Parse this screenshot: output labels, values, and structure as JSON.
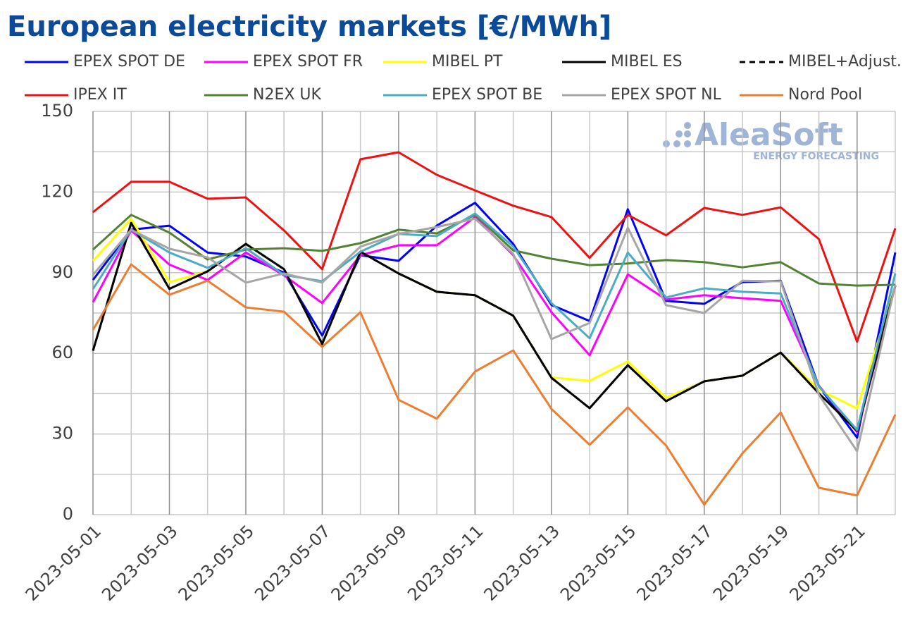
{
  "chart_data": {
    "type": "line",
    "title": "European electricity markets [€/MWh]",
    "watermark": {
      "name": "AleaSoft",
      "tagline": "ENERGY FORECASTING"
    },
    "categories": [
      "2023-05-01",
      null,
      "2023-05-03",
      null,
      "2023-05-05",
      null,
      "2023-05-07",
      null,
      "2023-05-09",
      null,
      "2023-05-11",
      null,
      "2023-05-13",
      null,
      "2023-05-15",
      null,
      "2023-05-17",
      null,
      "2023-05-19",
      null,
      "2023-05-21",
      null
    ],
    "ylim": [
      0,
      150
    ],
    "yticks": [
      0,
      30,
      60,
      90,
      120,
      150
    ],
    "minor_yticks": [
      15,
      45,
      75,
      105,
      135
    ],
    "grid": true,
    "series": [
      {
        "name": "EPEX SPOT DE",
        "color": "#0000ff",
        "values": [
          87.3,
          106,
          107.5,
          97.5,
          96,
          90,
          66.6,
          96.5,
          94.4,
          107.5,
          116,
          100.7,
          78,
          72,
          113.6,
          79.5,
          78.4,
          86.5,
          87,
          47.7,
          28.6,
          97.5
        ]
      },
      {
        "name": "EPEX SPOT FR",
        "color": "#ff00ff",
        "values": [
          79,
          105.7,
          93,
          87.3,
          97.5,
          89,
          78.7,
          96.5,
          100.2,
          100.2,
          110.7,
          96.5,
          75.3,
          59.3,
          89.4,
          80,
          81.6,
          80.5,
          79.5,
          48,
          30.7,
          85.2
        ]
      },
      {
        "name": "MIBEL PT",
        "color": "#ffff00",
        "values": [
          94.4,
          110,
          86.5,
          90.5,
          100.7,
          91.3,
          63.5,
          97.8,
          89.7,
          82.9,
          81.6,
          74,
          51,
          49.8,
          57,
          43.5,
          49.6,
          51.7,
          60.3,
          46.5,
          39.5,
          85
        ]
      },
      {
        "name": "MIBEL ES",
        "color": "#000000",
        "values": [
          61,
          108.5,
          84,
          90.5,
          100.7,
          91.3,
          63.5,
          97.8,
          89.7,
          82.9,
          81.6,
          74,
          50.9,
          39.6,
          55.6,
          42.2,
          49.6,
          51.7,
          60.3,
          45.1,
          31.2,
          85.2
        ]
      },
      {
        "name": "MIBEL+Adjust.",
        "color": "#000000",
        "dashed": true,
        "values": [
          61,
          108.5,
          84,
          90.5,
          100.7,
          91.3,
          63.5,
          97.8,
          89.7,
          82.9,
          81.6,
          74,
          50.9,
          39.6,
          55.6,
          42.2,
          49.6,
          51.7,
          60.3,
          45.1,
          31.2,
          85.2
        ]
      },
      {
        "name": "IPEX IT",
        "color": "#ee1111",
        "values": [
          112.5,
          123.8,
          123.8,
          117.5,
          118,
          105.7,
          91.3,
          132.2,
          134.8,
          126.4,
          120.6,
          114.9,
          110.7,
          95.5,
          111.5,
          103.9,
          114.1,
          111.5,
          114.3,
          102.5,
          64.3,
          106.5
        ]
      },
      {
        "name": "N2EX UK",
        "color": "#548235",
        "values": [
          98.6,
          111.5,
          104.9,
          94.9,
          98.6,
          99.1,
          98.1,
          101,
          106,
          104.6,
          111.5,
          98.3,
          95.2,
          92.8,
          93.4,
          94.7,
          93.9,
          92,
          93.9,
          86,
          85.2,
          85.5
        ]
      },
      {
        "name": "EPEX SPOT BE",
        "color": "#4bacc6",
        "values": [
          83.9,
          106,
          97.5,
          91.8,
          99.1,
          89.2,
          86.8,
          97.8,
          104.4,
          103.6,
          112,
          99.7,
          78.7,
          65.6,
          97.5,
          80.8,
          84.2,
          82.9,
          82.3,
          47.7,
          31.5,
          89.7
        ]
      },
      {
        "name": "EPEX SPOT NL",
        "color": "#a6a6a6",
        "values": [
          89.2,
          106,
          98.9,
          95.7,
          86.3,
          89.7,
          86.3,
          99.7,
          104.4,
          107,
          110.1,
          97,
          65.3,
          71.3,
          106.7,
          77.9,
          75,
          87,
          86.8,
          44.6,
          23.6,
          85.5
        ]
      },
      {
        "name": "Nord Pool",
        "color": "#ed7d31",
        "values": [
          68.7,
          93.1,
          81.8,
          87,
          77.1,
          75.5,
          62.4,
          75.3,
          42.7,
          35.7,
          53.2,
          61.1,
          39.3,
          26,
          39.9,
          25.7,
          3.7,
          22.8,
          38,
          10,
          7.1,
          37.2
        ]
      }
    ]
  }
}
